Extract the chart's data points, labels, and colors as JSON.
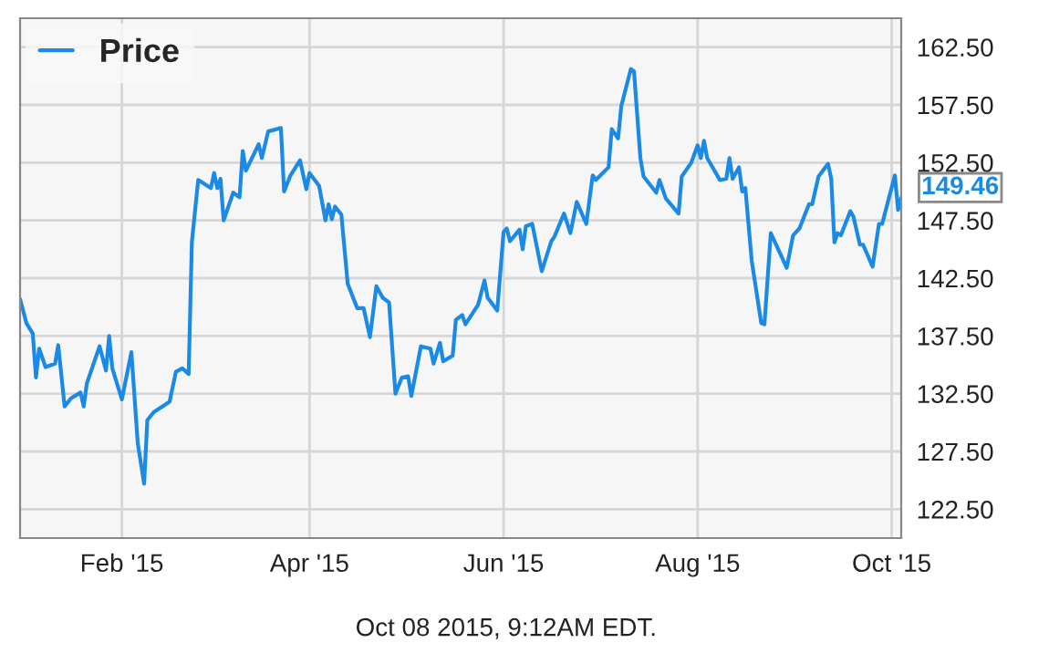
{
  "chart_data": {
    "type": "line",
    "x": [
      "2014-12-31",
      "2015-01-02",
      "2015-01-04",
      "2015-01-05",
      "2015-01-06",
      "2015-01-08",
      "2015-01-11",
      "2015-01-12",
      "2015-01-14",
      "2015-01-16",
      "2015-01-19",
      "2015-01-20",
      "2015-01-21",
      "2015-01-25",
      "2015-01-27",
      "2015-01-28",
      "2015-01-29",
      "2015-02-01",
      "2015-02-04",
      "2015-02-06",
      "2015-02-08",
      "2015-02-09",
      "2015-02-11",
      "2015-02-16",
      "2015-02-18",
      "2015-02-20",
      "2015-02-22",
      "2015-02-23",
      "2015-02-25",
      "2015-03-01",
      "2015-03-02",
      "2015-03-03",
      "2015-03-04",
      "2015-03-05",
      "2015-03-08",
      "2015-03-10",
      "2015-03-11",
      "2015-03-12",
      "2015-03-16",
      "2015-03-17",
      "2015-03-19",
      "2015-03-23",
      "2015-03-24",
      "2015-03-26",
      "2015-03-29",
      "2015-03-31",
      "2015-04-01",
      "2015-04-04",
      "2015-04-06",
      "2015-04-07",
      "2015-04-08",
      "2015-04-09",
      "2015-04-11",
      "2015-04-13",
      "2015-04-16",
      "2015-04-18",
      "2015-04-20",
      "2015-04-22",
      "2015-04-24",
      "2015-04-26",
      "2015-04-28",
      "2015-04-30",
      "2015-05-02",
      "2015-05-03",
      "2015-05-06",
      "2015-05-09",
      "2015-05-10",
      "2015-05-12",
      "2015-05-13",
      "2015-05-16",
      "2015-05-17",
      "2015-05-19",
      "2015-05-20",
      "2015-05-24",
      "2015-05-26",
      "2015-05-27",
      "2015-05-30",
      "2015-06-01",
      "2015-06-02",
      "2015-06-03",
      "2015-06-06",
      "2015-06-07",
      "2015-06-08",
      "2015-06-10",
      "2015-06-13",
      "2015-06-16",
      "2015-06-17",
      "2015-06-20",
      "2015-06-22",
      "2015-06-24",
      "2015-06-27",
      "2015-06-29",
      "2015-06-30",
      "2015-07-04",
      "2015-07-05",
      "2015-07-07",
      "2015-07-08",
      "2015-07-11",
      "2015-07-12",
      "2015-07-14",
      "2015-07-15",
      "2015-07-19",
      "2015-07-20",
      "2015-07-22",
      "2015-07-26",
      "2015-07-27",
      "2015-07-30",
      "2015-08-01",
      "2015-08-02",
      "2015-08-03",
      "2015-08-04",
      "2015-08-08",
      "2015-08-10",
      "2015-08-11",
      "2015-08-12",
      "2015-08-14",
      "2015-08-15",
      "2015-08-16",
      "2015-08-18",
      "2015-08-21",
      "2015-08-22",
      "2015-08-24",
      "2015-08-29",
      "2015-08-31",
      "2015-09-02",
      "2015-09-05",
      "2015-09-06",
      "2015-09-08",
      "2015-09-11",
      "2015-09-12",
      "2015-09-13",
      "2015-09-14",
      "2015-09-15",
      "2015-09-18",
      "2015-09-19",
      "2015-09-21",
      "2015-09-22",
      "2015-09-25",
      "2015-09-27",
      "2015-09-28",
      "2015-10-02",
      "2015-10-03",
      "2015-10-04"
    ],
    "series": [
      {
        "name": "Price",
        "color": "#1a8ae6",
        "values": [
          140.7,
          138.6,
          137.7,
          133.9,
          136.4,
          134.8,
          135.1,
          136.7,
          131.4,
          132.1,
          132.6,
          131.4,
          133.4,
          136.6,
          134.5,
          137.5,
          134.7,
          132.0,
          136.1,
          128.2,
          124.7,
          130.2,
          130.9,
          131.8,
          134.4,
          134.7,
          134.2,
          145.6,
          151.0,
          150.3,
          151.6,
          150.3,
          151.1,
          147.5,
          149.9,
          149.5,
          153.5,
          151.8,
          154.1,
          152.9,
          155.2,
          155.5,
          150.0,
          151.4,
          152.7,
          150.2,
          151.6,
          150.5,
          147.5,
          148.9,
          147.6,
          148.7,
          148.0,
          142.0,
          139.9,
          139.9,
          137.4,
          141.8,
          140.8,
          140.4,
          132.5,
          133.9,
          134.0,
          132.3,
          136.6,
          136.4,
          135.1,
          136.9,
          135.3,
          135.8,
          138.9,
          139.3,
          138.5,
          140.2,
          142.3,
          140.8,
          139.7,
          146.5,
          146.8,
          145.7,
          146.7,
          145.0,
          147.0,
          147.2,
          143.1,
          145.7,
          146.1,
          148.1,
          146.4,
          149.1,
          147.2,
          151.4,
          151.0,
          152.1,
          155.4,
          154.6,
          157.4,
          160.6,
          160.4,
          152.9,
          151.3,
          149.9,
          151.0,
          149.4,
          148.1,
          151.3,
          152.5,
          154.0,
          152.9,
          154.4,
          152.9,
          151.0,
          151.1,
          152.9,
          151.1,
          152.1,
          150.0,
          150.3,
          144.0,
          138.6,
          138.5,
          146.4,
          143.4,
          146.2,
          146.8,
          148.9,
          148.9,
          151.3,
          152.4,
          151.1,
          145.6,
          146.4,
          146.2,
          148.3,
          147.8,
          145.4,
          145.4,
          143.5,
          147.2,
          147.2,
          151.4,
          148.4,
          149.46
        ]
      }
    ],
    "xlim": [
      "2014-12-31",
      "2015-10-04"
    ],
    "xticks": [
      {
        "value": "2015-02-01",
        "label": "Feb '15"
      },
      {
        "value": "2015-04-01",
        "label": "Apr '15"
      },
      {
        "value": "2015-06-01",
        "label": "Jun '15"
      },
      {
        "value": "2015-08-01",
        "label": "Aug '15"
      },
      {
        "value": "2015-10-01",
        "label": "Oct '15"
      }
    ],
    "ylim": [
      120.0,
      165.0
    ],
    "yticks": [
      {
        "value": 122.5,
        "label": "122.50"
      },
      {
        "value": 127.5,
        "label": "127.50"
      },
      {
        "value": 132.5,
        "label": "132.50"
      },
      {
        "value": 137.5,
        "label": "137.50"
      },
      {
        "value": 142.5,
        "label": "142.50"
      },
      {
        "value": 147.5,
        "label": "147.50"
      },
      {
        "value": 152.5,
        "label": "152.50"
      },
      {
        "value": 157.5,
        "label": "157.50"
      },
      {
        "value": 162.5,
        "label": "162.50"
      }
    ],
    "grid": true,
    "legend": "top left",
    "marker": "none",
    "annotations": [
      {
        "text": "149.46",
        "x": "2015-10-04",
        "y": 149.46
      },
      "Oct 08 2015, 9:12AM EDT."
    ]
  }
}
